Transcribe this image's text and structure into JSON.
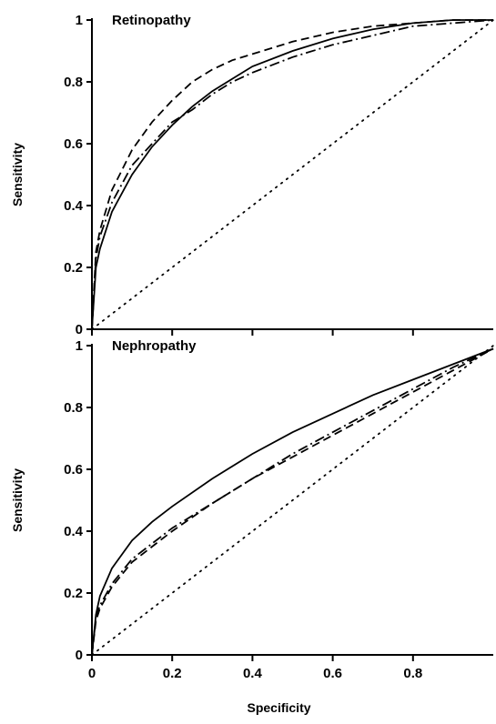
{
  "chart_data": [
    {
      "type": "line",
      "title": "Retinopathy",
      "xlabel": "",
      "ylabel": "Sensitivity",
      "xlim": [
        0,
        1
      ],
      "ylim": [
        0,
        1
      ],
      "x_ticks": [
        "0",
        "0.2",
        "0.4",
        "0.6",
        "0.8"
      ],
      "y_ticks": [
        "0",
        "0.2",
        "0.4",
        "0.6",
        "0.8",
        "1"
      ],
      "grid": false,
      "series": [
        {
          "style": "solid",
          "x": [
            0,
            0.01,
            0.02,
            0.05,
            0.1,
            0.15,
            0.2,
            0.25,
            0.3,
            0.35,
            0.4,
            0.5,
            0.6,
            0.7,
            0.8,
            0.9,
            1.0
          ],
          "y": [
            0,
            0.2,
            0.26,
            0.38,
            0.5,
            0.59,
            0.66,
            0.72,
            0.77,
            0.81,
            0.85,
            0.9,
            0.94,
            0.97,
            0.99,
            1.0,
            1.0
          ]
        },
        {
          "style": "dashed",
          "x": [
            0,
            0.01,
            0.02,
            0.05,
            0.1,
            0.15,
            0.2,
            0.25,
            0.3,
            0.35,
            0.4,
            0.5,
            0.6,
            0.7,
            0.8,
            0.9,
            1.0
          ],
          "y": [
            0,
            0.25,
            0.32,
            0.45,
            0.58,
            0.67,
            0.74,
            0.8,
            0.84,
            0.87,
            0.89,
            0.93,
            0.96,
            0.98,
            0.99,
            1.0,
            1.0
          ]
        },
        {
          "style": "dash-dot",
          "x": [
            0,
            0.01,
            0.02,
            0.05,
            0.1,
            0.15,
            0.2,
            0.25,
            0.3,
            0.35,
            0.4,
            0.5,
            0.6,
            0.7,
            0.8,
            0.9,
            1.0
          ],
          "y": [
            0,
            0.23,
            0.3,
            0.41,
            0.53,
            0.6,
            0.67,
            0.71,
            0.76,
            0.8,
            0.83,
            0.88,
            0.92,
            0.95,
            0.98,
            0.99,
            1.0
          ]
        },
        {
          "style": "dotted",
          "x": [
            0,
            1
          ],
          "y": [
            0,
            1
          ]
        }
      ]
    },
    {
      "type": "line",
      "title": "Nephropathy",
      "xlabel": "Specificity",
      "ylabel": "Sensitivity",
      "xlim": [
        0,
        1
      ],
      "ylim": [
        0,
        1
      ],
      "x_ticks": [
        "0",
        "0.2",
        "0.4",
        "0.6",
        "0.8"
      ],
      "y_ticks": [
        "0",
        "0.2",
        "0.4",
        "0.6",
        "0.8",
        "1"
      ],
      "grid": false,
      "series": [
        {
          "style": "solid",
          "x": [
            0,
            0.01,
            0.02,
            0.05,
            0.1,
            0.15,
            0.2,
            0.3,
            0.4,
            0.5,
            0.6,
            0.7,
            0.8,
            0.9,
            1.0
          ],
          "y": [
            0,
            0.13,
            0.19,
            0.28,
            0.37,
            0.43,
            0.48,
            0.57,
            0.65,
            0.72,
            0.78,
            0.84,
            0.89,
            0.94,
            0.99
          ]
        },
        {
          "style": "dashed",
          "x": [
            0,
            0.01,
            0.02,
            0.05,
            0.1,
            0.15,
            0.2,
            0.3,
            0.4,
            0.5,
            0.6,
            0.7,
            0.8,
            0.9,
            1.0
          ],
          "y": [
            0,
            0.11,
            0.15,
            0.22,
            0.3,
            0.35,
            0.4,
            0.49,
            0.57,
            0.64,
            0.71,
            0.78,
            0.85,
            0.92,
            0.99
          ]
        },
        {
          "style": "dash-dot",
          "x": [
            0,
            0.01,
            0.02,
            0.05,
            0.1,
            0.15,
            0.2,
            0.3,
            0.4,
            0.5,
            0.6,
            0.7,
            0.8,
            0.9,
            1.0
          ],
          "y": [
            0,
            0.12,
            0.16,
            0.23,
            0.31,
            0.36,
            0.41,
            0.49,
            0.57,
            0.65,
            0.72,
            0.79,
            0.86,
            0.93,
            0.99
          ]
        },
        {
          "style": "dotted",
          "x": [
            0,
            1
          ],
          "y": [
            0,
            1
          ]
        }
      ]
    }
  ]
}
